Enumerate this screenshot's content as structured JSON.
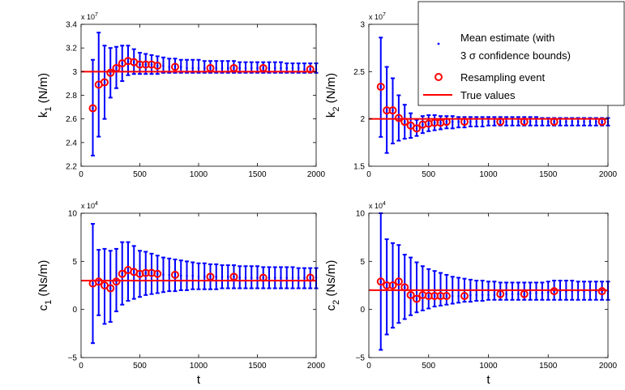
{
  "chart_data": [
    {
      "type": "scatter",
      "ylabel_main": "k",
      "ylabel_sub": "1",
      "ylabel_unit": " (N/m)",
      "xlabel": "",
      "exponent_label": "x 10",
      "exponent_power": "7",
      "xlim": [
        0,
        2000
      ],
      "ylim": [
        2.2,
        3.4
      ],
      "xticks": [
        0,
        500,
        1000,
        1500,
        2000
      ],
      "yticks": [
        2.2,
        2.4,
        2.6,
        2.8,
        3,
        3.2,
        3.4
      ],
      "ytick_labels": [
        "2.2",
        "2.4",
        "2.6",
        "2.8",
        "3",
        "3.2",
        "3.4"
      ],
      "true_value": 3.0,
      "mean_estimate": {
        "x": [
          100,
          150,
          200,
          250,
          300,
          350,
          400,
          450,
          500,
          550,
          600,
          650,
          700,
          750,
          800,
          850,
          900,
          950,
          1000,
          1050,
          1100,
          1150,
          1200,
          1250,
          1300,
          1350,
          1400,
          1450,
          1500,
          1550,
          1600,
          1650,
          1700,
          1750,
          1800,
          1850,
          1900,
          1950,
          2000
        ],
        "y": [
          2.69,
          2.89,
          2.91,
          2.99,
          3.03,
          3.07,
          3.09,
          3.08,
          3.06,
          3.06,
          3.06,
          3.05,
          3.05,
          3.04,
          3.04,
          3.04,
          3.03,
          3.03,
          3.03,
          3.03,
          3.03,
          3.03,
          3.03,
          3.03,
          3.03,
          3.03,
          3.03,
          3.03,
          3.03,
          3.03,
          3.03,
          3.03,
          3.03,
          3.03,
          3.03,
          3.03,
          3.02,
          3.02,
          3.02
        ],
        "lower": [
          2.29,
          2.45,
          2.6,
          2.78,
          2.86,
          2.92,
          2.97,
          2.98,
          2.98,
          2.98,
          2.98,
          2.98,
          2.99,
          2.99,
          2.99,
          2.99,
          2.99,
          2.99,
          2.99,
          2.99,
          2.99,
          2.99,
          2.99,
          2.99,
          2.99,
          2.99,
          2.99,
          2.99,
          2.99,
          2.99,
          2.99,
          2.99,
          2.99,
          2.99,
          2.99,
          2.99,
          2.99,
          2.99,
          2.99
        ],
        "upper": [
          3.1,
          3.33,
          3.22,
          3.2,
          3.21,
          3.22,
          3.22,
          3.19,
          3.16,
          3.15,
          3.14,
          3.13,
          3.12,
          3.11,
          3.11,
          3.1,
          3.1,
          3.1,
          3.1,
          3.09,
          3.09,
          3.09,
          3.09,
          3.09,
          3.09,
          3.08,
          3.08,
          3.08,
          3.08,
          3.08,
          3.08,
          3.08,
          3.08,
          3.07,
          3.07,
          3.07,
          3.07,
          3.07,
          3.07
        ]
      },
      "resampling_events": {
        "x": [
          100,
          150,
          200,
          250,
          300,
          350,
          400,
          450,
          500,
          550,
          600,
          650,
          800,
          1100,
          1300,
          1550,
          1950
        ],
        "y": [
          2.69,
          2.89,
          2.91,
          2.99,
          3.03,
          3.07,
          3.09,
          3.08,
          3.06,
          3.06,
          3.06,
          3.05,
          3.04,
          3.03,
          3.03,
          3.03,
          3.02
        ]
      }
    },
    {
      "type": "scatter",
      "ylabel_main": "k",
      "ylabel_sub": "2",
      "ylabel_unit": " (N/m)",
      "xlabel": "",
      "exponent_label": "x 10",
      "exponent_power": "7",
      "xlim": [
        0,
        2000
      ],
      "ylim": [
        1.5,
        3.0
      ],
      "xticks": [
        0,
        500,
        1000,
        1500,
        2000
      ],
      "yticks": [
        1.5,
        2,
        2.5,
        3
      ],
      "ytick_labels": [
        "1.5",
        "2",
        "2.5",
        "3"
      ],
      "true_value": 2.0,
      "mean_estimate": {
        "x": [
          100,
          150,
          200,
          250,
          300,
          350,
          400,
          450,
          500,
          550,
          600,
          650,
          700,
          750,
          800,
          850,
          900,
          950,
          1000,
          1050,
          1100,
          1150,
          1200,
          1250,
          1300,
          1350,
          1400,
          1450,
          1500,
          1550,
          1600,
          1650,
          1700,
          1750,
          1800,
          1850,
          1900,
          1950,
          2000
        ],
        "y": [
          2.34,
          2.09,
          2.09,
          2.01,
          1.97,
          1.93,
          1.9,
          1.94,
          1.95,
          1.96,
          1.96,
          1.97,
          1.97,
          1.97,
          1.97,
          1.97,
          1.97,
          1.97,
          1.97,
          1.97,
          1.97,
          1.97,
          1.97,
          1.97,
          1.97,
          1.97,
          1.97,
          1.97,
          1.97,
          1.97,
          1.97,
          1.97,
          1.97,
          1.97,
          1.97,
          1.97,
          1.97,
          1.97,
          1.97
        ],
        "lower": [
          1.81,
          1.64,
          1.74,
          1.77,
          1.79,
          1.8,
          1.82,
          1.85,
          1.87,
          1.88,
          1.89,
          1.9,
          1.9,
          1.91,
          1.91,
          1.92,
          1.92,
          1.92,
          1.93,
          1.93,
          1.93,
          1.93,
          1.93,
          1.93,
          1.93,
          1.93,
          1.93,
          1.93,
          1.93,
          1.93,
          1.93,
          1.93,
          1.93,
          1.93,
          1.93,
          1.93,
          1.93,
          1.93,
          1.93
        ],
        "upper": [
          2.86,
          2.55,
          2.43,
          2.25,
          2.15,
          2.06,
          1.99,
          2.03,
          2.04,
          2.04,
          2.03,
          2.03,
          2.03,
          2.02,
          2.02,
          2.02,
          2.02,
          2.02,
          2.02,
          2.02,
          2.02,
          2.02,
          2.02,
          2.02,
          2.02,
          2.02,
          2.02,
          2.01,
          2.01,
          2.01,
          2.01,
          2.01,
          2.01,
          2.01,
          2.01,
          2.01,
          2.01,
          2.01,
          2.01
        ]
      },
      "resampling_events": {
        "x": [
          100,
          150,
          200,
          250,
          300,
          350,
          400,
          450,
          500,
          550,
          600,
          650,
          800,
          1100,
          1300,
          1550,
          1950
        ],
        "y": [
          2.34,
          2.09,
          2.09,
          2.01,
          1.97,
          1.93,
          1.9,
          1.94,
          1.95,
          1.96,
          1.96,
          1.97,
          1.97,
          1.97,
          1.97,
          1.97,
          1.97
        ]
      },
      "legend": {
        "placement": "top-right",
        "entries": [
          {
            "line1": "Mean estimate (with",
            "line2_prefix": "3 ",
            "line2_sigma": "σ",
            "line2_suffix": " confidence bounds)",
            "color": "#0000ff"
          },
          {
            "line1": "Resampling event",
            "color": "#ff0000"
          },
          {
            "line1": "True values",
            "color": "#ff0000"
          }
        ]
      }
    },
    {
      "type": "scatter",
      "ylabel_main": "c",
      "ylabel_sub": "1",
      "ylabel_unit": " (Ns/m)",
      "xlabel": "t",
      "exponent_label": "x 10",
      "exponent_power": "4",
      "xlim": [
        0,
        2000
      ],
      "ylim": [
        -5,
        10
      ],
      "xticks": [
        0,
        500,
        1000,
        1500,
        2000
      ],
      "yticks": [
        -5,
        0,
        5,
        10
      ],
      "ytick_labels": [
        "−5",
        "0",
        "5",
        "10"
      ],
      "true_value": 3.0,
      "mean_estimate": {
        "x": [
          100,
          150,
          200,
          250,
          300,
          350,
          400,
          450,
          500,
          550,
          600,
          650,
          700,
          750,
          800,
          850,
          900,
          950,
          1000,
          1050,
          1100,
          1150,
          1200,
          1250,
          1300,
          1350,
          1400,
          1450,
          1500,
          1550,
          1600,
          1650,
          1700,
          1750,
          1800,
          1850,
          1900,
          1950,
          2000
        ],
        "y": [
          2.7,
          2.9,
          2.5,
          2.2,
          2.9,
          3.7,
          4.1,
          3.9,
          3.7,
          3.8,
          3.8,
          3.7,
          3.6,
          3.6,
          3.6,
          3.5,
          3.5,
          3.5,
          3.4,
          3.4,
          3.4,
          3.4,
          3.4,
          3.4,
          3.4,
          3.3,
          3.3,
          3.3,
          3.3,
          3.3,
          3.3,
          3.3,
          3.3,
          3.3,
          3.3,
          3.3,
          3.3,
          3.3,
          3.3
        ],
        "lower": [
          -3.5,
          -0.6,
          -1.5,
          -1.3,
          -0.2,
          0.5,
          0.9,
          1.1,
          1.3,
          1.5,
          1.6,
          1.7,
          1.8,
          1.9,
          1.9,
          2.0,
          2.0,
          2.1,
          2.1,
          2.1,
          2.1,
          2.1,
          2.2,
          2.2,
          2.2,
          2.2,
          2.2,
          2.2,
          2.2,
          2.2,
          2.2,
          2.2,
          2.2,
          2.2,
          2.2,
          2.2,
          2.2,
          2.2,
          2.2
        ],
        "upper": [
          8.9,
          6.2,
          6.3,
          6.1,
          6.3,
          7.0,
          7.0,
          6.6,
          6.1,
          6.0,
          5.8,
          5.6,
          5.4,
          5.3,
          5.2,
          5.1,
          5.0,
          4.9,
          4.8,
          4.8,
          4.7,
          4.7,
          4.6,
          4.6,
          4.6,
          4.5,
          4.5,
          4.5,
          4.5,
          4.4,
          4.4,
          4.4,
          4.4,
          4.4,
          4.4,
          4.3,
          4.3,
          4.3,
          4.3
        ]
      },
      "resampling_events": {
        "x": [
          100,
          150,
          200,
          250,
          300,
          350,
          400,
          450,
          500,
          550,
          600,
          650,
          800,
          1100,
          1300,
          1550,
          1950
        ],
        "y": [
          2.7,
          2.9,
          2.5,
          2.2,
          2.9,
          3.7,
          4.1,
          3.9,
          3.7,
          3.8,
          3.8,
          3.7,
          3.6,
          3.4,
          3.4,
          3.3,
          3.3
        ]
      }
    },
    {
      "type": "scatter",
      "ylabel_main": "c",
      "ylabel_sub": "2",
      "ylabel_unit": " (Ns/m)",
      "xlabel": "t",
      "exponent_label": "x 10",
      "exponent_power": "4",
      "xlim": [
        0,
        2000
      ],
      "ylim": [
        -5,
        10
      ],
      "xticks": [
        0,
        500,
        1000,
        1500,
        2000
      ],
      "yticks": [
        -5,
        0,
        5,
        10
      ],
      "ytick_labels": [
        "−5",
        "0",
        "5",
        "10"
      ],
      "true_value": 2.0,
      "mean_estimate": {
        "x": [
          100,
          150,
          200,
          250,
          300,
          350,
          400,
          450,
          500,
          550,
          600,
          650,
          700,
          750,
          800,
          850,
          900,
          950,
          1000,
          1050,
          1100,
          1150,
          1200,
          1250,
          1300,
          1350,
          1400,
          1450,
          1500,
          1550,
          1600,
          1650,
          1700,
          1750,
          1800,
          1850,
          1900,
          1950,
          2000
        ],
        "y": [
          2.9,
          2.5,
          2.5,
          2.9,
          2.3,
          1.5,
          1.1,
          1.5,
          1.4,
          1.4,
          1.4,
          1.4,
          1.4,
          1.4,
          1.4,
          1.5,
          1.5,
          1.5,
          1.5,
          1.5,
          1.6,
          1.6,
          1.6,
          1.6,
          1.6,
          1.7,
          1.7,
          1.7,
          1.8,
          1.9,
          1.9,
          1.9,
          1.9,
          1.9,
          1.9,
          1.9,
          1.9,
          1.9,
          1.9
        ],
        "lower": [
          -4.2,
          -2.6,
          -1.9,
          -1.4,
          -1.0,
          -0.6,
          -0.3,
          -0.1,
          0.1,
          0.3,
          0.4,
          0.5,
          0.6,
          0.7,
          0.8,
          0.8,
          0.9,
          0.9,
          1.0,
          1.0,
          1.0,
          1.0,
          1.0,
          1.0,
          1.0,
          1.0,
          1.0,
          1.0,
          1.0,
          1.0,
          1.0,
          1.0,
          1.0,
          1.0,
          1.0,
          1.0,
          1.0,
          1.0,
          1.0
        ],
        "upper": [
          10.0,
          7.3,
          6.9,
          6.7,
          5.7,
          5.4,
          4.9,
          4.5,
          4.2,
          4.0,
          3.8,
          3.6,
          3.4,
          3.3,
          3.2,
          3.1,
          3.0,
          3.0,
          2.9,
          2.9,
          2.8,
          2.8,
          2.8,
          2.8,
          2.8,
          2.8,
          2.8,
          2.8,
          2.9,
          3.0,
          3.0,
          3.0,
          3.0,
          2.9,
          2.9,
          2.9,
          2.9,
          2.9,
          2.9
        ]
      },
      "resampling_events": {
        "x": [
          100,
          150,
          200,
          250,
          300,
          350,
          400,
          450,
          500,
          550,
          600,
          650,
          800,
          1100,
          1300,
          1550,
          1950
        ],
        "y": [
          2.9,
          2.5,
          2.5,
          2.9,
          2.3,
          1.5,
          1.1,
          1.5,
          1.4,
          1.4,
          1.4,
          1.4,
          1.4,
          1.6,
          1.6,
          1.9,
          1.9
        ]
      }
    }
  ],
  "colors": {
    "estimate": "#0000ff",
    "resampling": "#ff0000",
    "true_value": "#ff0000",
    "axes": "#000000",
    "background": "#ffffff"
  }
}
